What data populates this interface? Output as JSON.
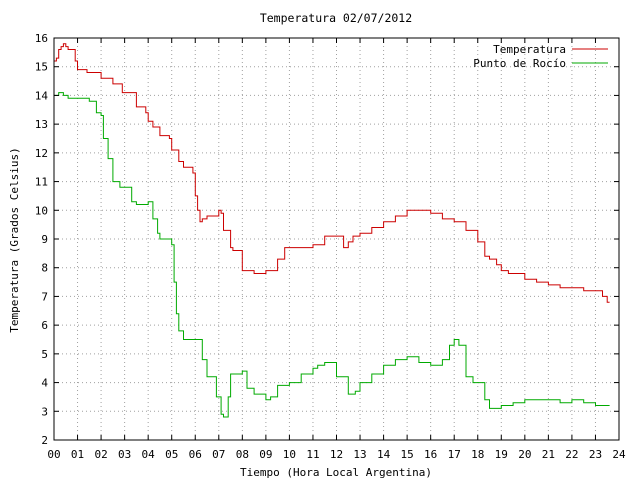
{
  "chart_data": {
    "type": "line",
    "title": "Temperatura 02/07/2012",
    "xlabel": "Tiempo (Hora Local Argentina)",
    "ylabel": "Temperatura (Grados Celsius)",
    "xlim": [
      0,
      24
    ],
    "ylim": [
      2,
      16
    ],
    "x_ticks": [
      "00",
      "01",
      "02",
      "03",
      "04",
      "05",
      "06",
      "07",
      "08",
      "09",
      "10",
      "11",
      "12",
      "13",
      "14",
      "15",
      "16",
      "17",
      "18",
      "19",
      "20",
      "21",
      "22",
      "23",
      "24"
    ],
    "y_ticks": [
      "2",
      "3",
      "4",
      "5",
      "6",
      "7",
      "8",
      "9",
      "10",
      "11",
      "12",
      "13",
      "14",
      "15",
      "16"
    ],
    "grid": true,
    "legend_position": "top-right",
    "series": [
      {
        "name": "Temperatura",
        "color": "#cc0000",
        "x": [
          0.0,
          0.1,
          0.2,
          0.3,
          0.4,
          0.5,
          0.6,
          0.9,
          1.0,
          1.4,
          1.6,
          2.0,
          2.5,
          2.9,
          3.5,
          3.9,
          4.0,
          4.2,
          4.5,
          4.9,
          5.0,
          5.3,
          5.5,
          5.9,
          6.0,
          6.1,
          6.2,
          6.3,
          6.5,
          6.9,
          7.0,
          7.1,
          7.2,
          7.5,
          7.6,
          8.0,
          8.5,
          9.0,
          9.5,
          9.8,
          10.0,
          10.5,
          11.0,
          11.5,
          12.0,
          12.3,
          12.5,
          12.7,
          13.0,
          13.5,
          14.0,
          14.5,
          15.0,
          15.5,
          16.0,
          16.5,
          17.0,
          17.5,
          18.0,
          18.3,
          18.5,
          18.8,
          19.0,
          19.3,
          19.5,
          20.0,
          20.5,
          21.0,
          21.5,
          22.0,
          22.5,
          23.0,
          23.3,
          23.5,
          23.6
        ],
        "y": [
          15.2,
          15.3,
          15.6,
          15.7,
          15.8,
          15.7,
          15.6,
          15.2,
          14.9,
          14.8,
          14.8,
          14.6,
          14.4,
          14.1,
          13.6,
          13.4,
          13.1,
          12.9,
          12.6,
          12.5,
          12.1,
          11.7,
          11.5,
          11.3,
          10.5,
          10.0,
          9.6,
          9.7,
          9.8,
          9.8,
          10.0,
          9.9,
          9.3,
          8.7,
          8.6,
          7.9,
          7.8,
          7.9,
          8.3,
          8.7,
          8.7,
          8.7,
          8.8,
          9.1,
          9.1,
          8.7,
          8.9,
          9.1,
          9.2,
          9.4,
          9.6,
          9.8,
          10.0,
          10.0,
          9.9,
          9.7,
          9.6,
          9.3,
          8.9,
          8.4,
          8.3,
          8.1,
          7.9,
          7.8,
          7.8,
          7.6,
          7.5,
          7.4,
          7.3,
          7.3,
          7.2,
          7.2,
          7.0,
          6.8,
          6.8
        ]
      },
      {
        "name": "Punto de Rocío",
        "color": "#00aa00",
        "x": [
          0.0,
          0.2,
          0.4,
          0.6,
          1.0,
          1.5,
          1.8,
          2.0,
          2.1,
          2.3,
          2.5,
          2.8,
          3.0,
          3.3,
          3.5,
          4.0,
          4.2,
          4.4,
          4.5,
          4.8,
          5.0,
          5.1,
          5.2,
          5.3,
          5.5,
          5.8,
          6.0,
          6.3,
          6.5,
          6.9,
          7.0,
          7.1,
          7.2,
          7.4,
          7.5,
          8.0,
          8.2,
          8.5,
          9.0,
          9.2,
          9.5,
          10.0,
          10.5,
          11.0,
          11.2,
          11.5,
          12.0,
          12.5,
          12.8,
          13.0,
          13.5,
          14.0,
          14.5,
          15.0,
          15.5,
          16.0,
          16.5,
          16.8,
          17.0,
          17.2,
          17.5,
          17.8,
          18.0,
          18.3,
          18.5,
          18.8,
          19.0,
          19.5,
          20.0,
          20.5,
          21.0,
          21.5,
          22.0,
          22.5,
          23.0,
          23.3,
          23.6
        ],
        "y": [
          14.0,
          14.1,
          14.0,
          13.9,
          13.9,
          13.8,
          13.4,
          13.3,
          12.5,
          11.8,
          11.0,
          10.8,
          10.8,
          10.3,
          10.2,
          10.3,
          9.7,
          9.2,
          9.0,
          9.0,
          8.8,
          7.5,
          6.4,
          5.8,
          5.5,
          5.5,
          5.5,
          4.8,
          4.2,
          3.5,
          3.5,
          2.9,
          2.8,
          3.5,
          4.3,
          4.4,
          3.8,
          3.6,
          3.4,
          3.5,
          3.9,
          4.0,
          4.3,
          4.5,
          4.6,
          4.7,
          4.2,
          3.6,
          3.7,
          4.0,
          4.3,
          4.6,
          4.8,
          4.9,
          4.7,
          4.6,
          4.8,
          5.3,
          5.5,
          5.3,
          4.2,
          4.0,
          4.0,
          3.4,
          3.1,
          3.1,
          3.2,
          3.3,
          3.4,
          3.4,
          3.4,
          3.3,
          3.4,
          3.3,
          3.2,
          3.2,
          3.2
        ]
      }
    ]
  }
}
